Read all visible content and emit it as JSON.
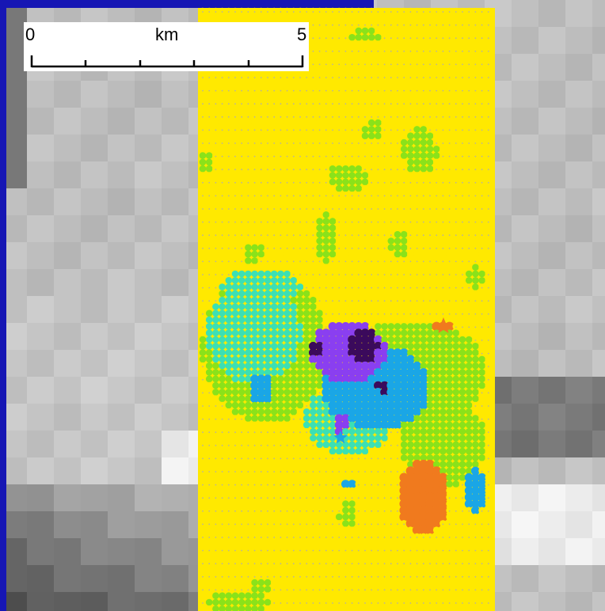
{
  "scale_bar": {
    "start_label": "0",
    "unit_label": "km",
    "end_label": "5"
  },
  "legend_colors": {
    "frame": "#1616b4",
    "class_1": "#ffe900",
    "class_2": "#8ae21a",
    "class_3": "#3be0b4",
    "class_4": "#1aa6e6",
    "class_5": "#8a3ff0",
    "class_6": "#3b0a5c",
    "class_7": "#f07a1e"
  }
}
